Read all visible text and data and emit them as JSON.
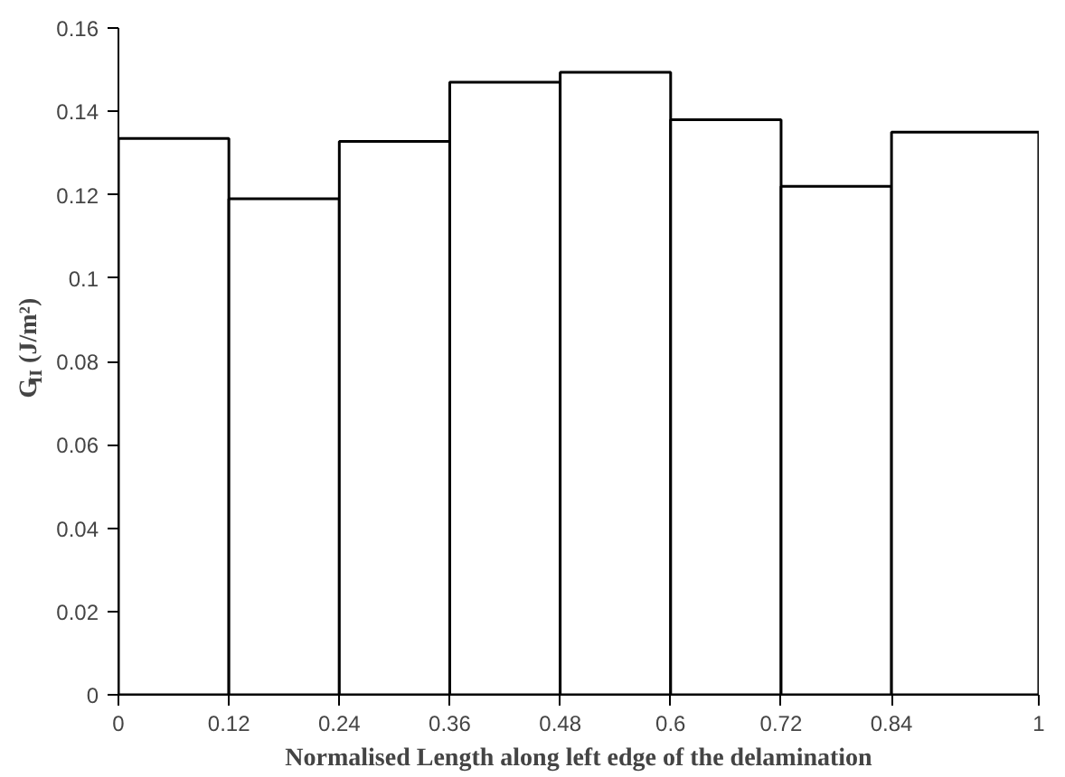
{
  "chart_data": {
    "type": "histogram",
    "xlabel": "Normalised Length along left edge of the delamination",
    "ylabel": "G$_{II}$ (J/m²)",
    "bins": [
      0,
      0.12,
      0.24,
      0.36,
      0.48,
      0.6,
      0.72,
      0.84,
      1
    ],
    "values": [
      0.1335,
      0.119,
      0.1328,
      0.147,
      0.1494,
      0.138,
      0.122,
      0.135
    ],
    "color": "#ffffff",
    "xlim": [
      0,
      1
    ],
    "xticks": [
      0,
      0.12,
      0.24,
      0.36,
      0.48,
      0.6,
      0.72,
      0.84,
      1
    ],
    "ylim": [
      0,
      0.16
    ],
    "yticks": [
      0,
      0.02,
      0.04,
      0.06,
      0.08,
      0.1,
      0.12,
      0.14,
      0.16
    ],
    "grid": false
  }
}
